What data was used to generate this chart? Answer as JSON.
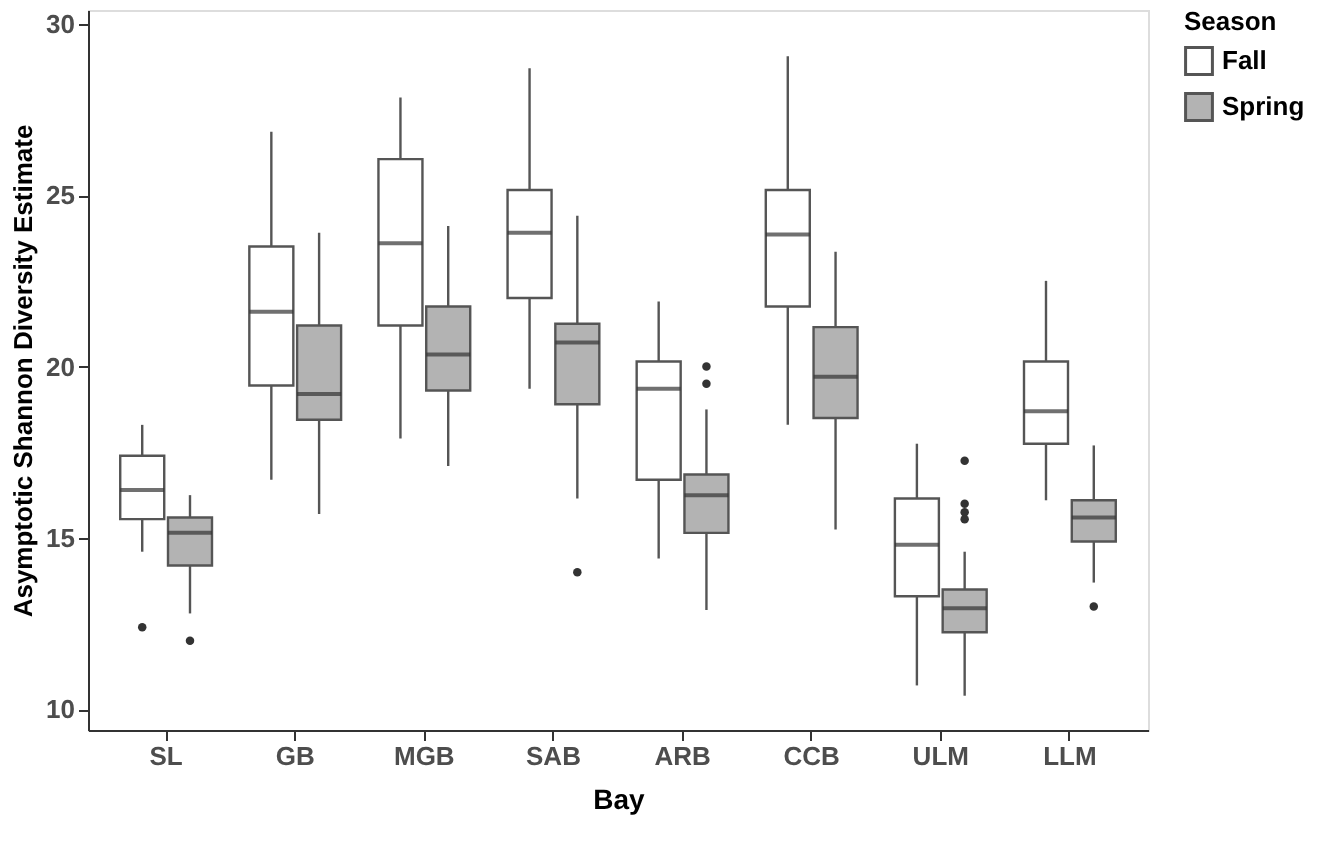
{
  "chart_data": {
    "type": "box",
    "xlabel": "Bay",
    "ylabel": "Asymptotic Shannon Diversity Estimate",
    "legend_title": "Season",
    "legend": "right",
    "grid": false,
    "categories": [
      "SL",
      "GB",
      "MGB",
      "SAB",
      "ARB",
      "CCB",
      "ULM",
      "LLM"
    ],
    "ylim": [
      9.4,
      30.4
    ],
    "yticks": [
      10,
      15,
      20,
      25,
      30
    ],
    "series": [
      {
        "name": "Fall",
        "color": "#ffffff",
        "boxes": [
          {
            "low": 14.6,
            "q1": 15.55,
            "median": 16.4,
            "q3": 17.4,
            "high": 18.3,
            "outliers": [
              12.4
            ]
          },
          {
            "low": 16.7,
            "q1": 19.45,
            "median": 21.6,
            "q3": 23.5,
            "high": 26.85
          },
          {
            "low": 17.9,
            "q1": 21.2,
            "median": 23.6,
            "q3": 26.05,
            "high": 27.85
          },
          {
            "low": 19.35,
            "q1": 22.0,
            "median": 23.9,
            "q3": 25.15,
            "high": 28.7
          },
          {
            "low": 14.4,
            "q1": 16.7,
            "median": 19.35,
            "q3": 20.15,
            "high": 21.9
          },
          {
            "low": 18.3,
            "q1": 21.75,
            "median": 23.85,
            "q3": 25.15,
            "high": 29.05
          },
          {
            "low": 10.7,
            "q1": 13.3,
            "median": 14.8,
            "q3": 16.15,
            "high": 17.75
          },
          {
            "low": 16.1,
            "q1": 17.75,
            "median": 18.7,
            "q3": 20.15,
            "high": 22.5
          }
        ]
      },
      {
        "name": "Spring",
        "color": "#b3b3b3",
        "boxes": [
          {
            "low": 12.8,
            "q1": 14.2,
            "median": 15.15,
            "q3": 15.6,
            "high": 16.25,
            "outliers": [
              12.0
            ]
          },
          {
            "low": 15.7,
            "q1": 18.45,
            "median": 19.2,
            "q3": 21.2,
            "high": 23.9
          },
          {
            "low": 17.1,
            "q1": 19.3,
            "median": 20.35,
            "q3": 21.75,
            "high": 24.1
          },
          {
            "low": 16.15,
            "q1": 18.9,
            "median": 20.7,
            "q3": 21.25,
            "high": 24.4,
            "outliers": [
              14.0
            ]
          },
          {
            "low": 12.9,
            "q1": 15.15,
            "median": 16.25,
            "q3": 16.85,
            "high": 18.75,
            "outliers": [
              19.5,
              20.0
            ]
          },
          {
            "low": 15.25,
            "q1": 18.5,
            "median": 19.7,
            "q3": 21.15,
            "high": 23.35
          },
          {
            "low": 10.4,
            "q1": 12.25,
            "median": 12.95,
            "q3": 13.5,
            "high": 14.6,
            "outliers": [
              15.55,
              15.75,
              16.0,
              17.25
            ]
          },
          {
            "low": 13.7,
            "q1": 14.9,
            "median": 15.6,
            "q3": 16.1,
            "high": 17.7,
            "outliers": [
              13.0
            ]
          }
        ]
      }
    ]
  }
}
